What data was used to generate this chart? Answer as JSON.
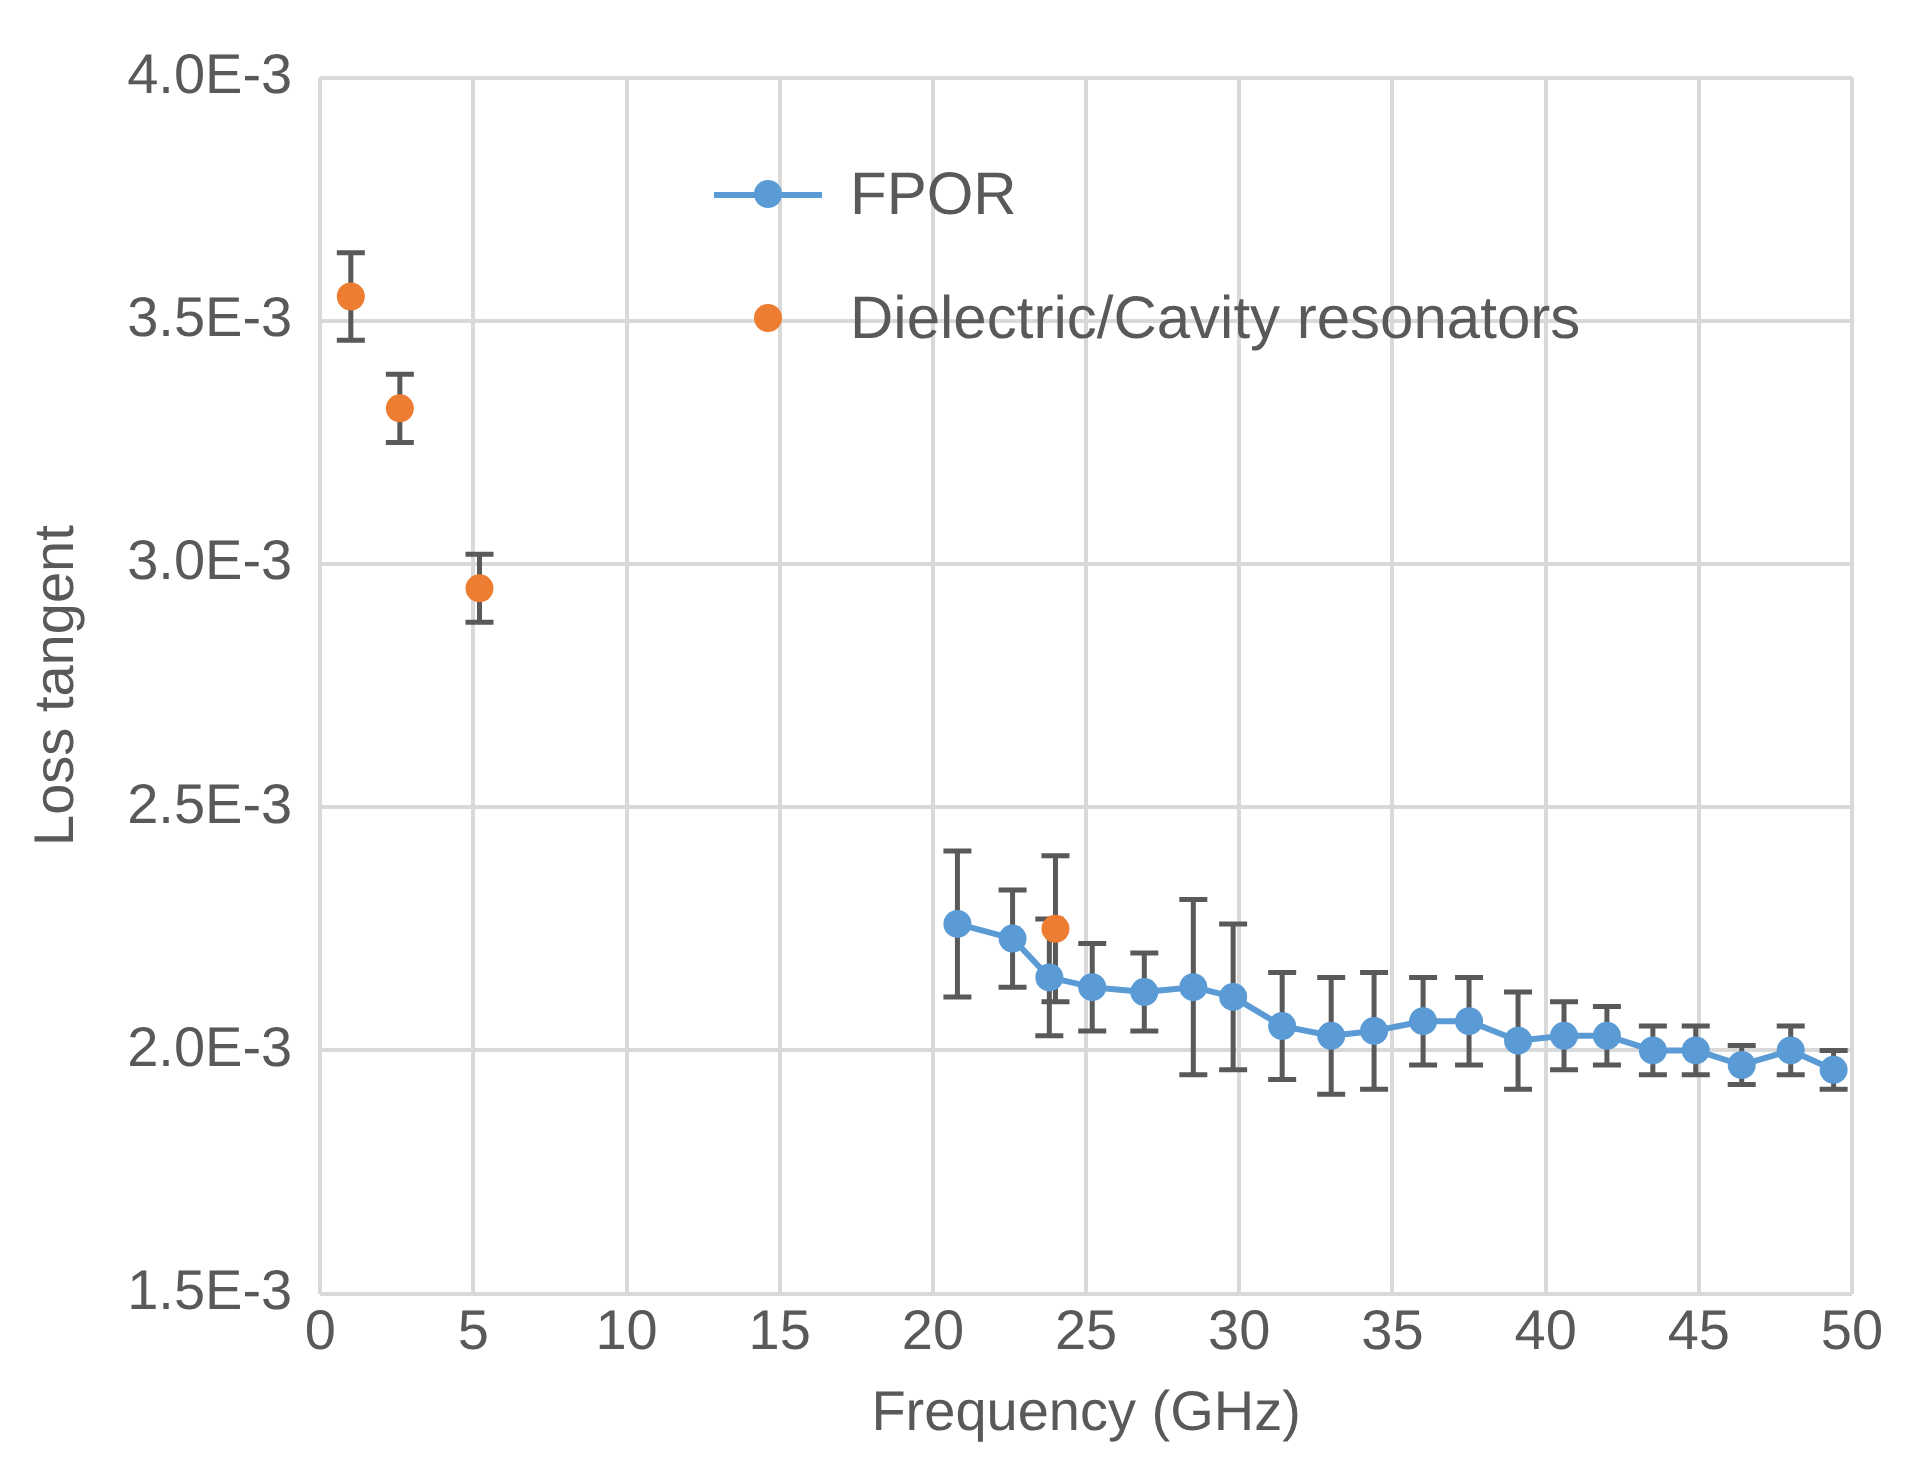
{
  "chart_data": {
    "type": "line",
    "xlabel": "Frequency (GHz)",
    "ylabel": "Loss tangent",
    "xlim": [
      0,
      50
    ],
    "xticks": [
      0,
      5,
      10,
      15,
      20,
      25,
      30,
      35,
      40,
      45,
      50
    ],
    "ylim": [
      0.0015,
      0.004
    ],
    "yticks": [
      {
        "value": 0.0015,
        "label": "1.5E-3"
      },
      {
        "value": 0.002,
        "label": "2.0E-3"
      },
      {
        "value": 0.0025,
        "label": "2.5E-3"
      },
      {
        "value": 0.003,
        "label": "3.0E-3"
      },
      {
        "value": 0.0035,
        "label": "3.5E-3"
      },
      {
        "value": 0.004,
        "label": "4.0E-3"
      }
    ],
    "grid": true,
    "legend": "top",
    "marker": "circle",
    "series": [
      {
        "name": "FPOR",
        "color": "#5b9bd5",
        "x": [
          20.8,
          22.6,
          23.8,
          25.2,
          26.9,
          28.5,
          29.8,
          31.4,
          33.0,
          34.4,
          36.0,
          37.5,
          39.1,
          40.6,
          42.0,
          43.5,
          44.9,
          46.4,
          48.0,
          49.4
        ],
        "values": [
          0.00226,
          0.00223,
          0.00215,
          0.00213,
          0.00212,
          0.00213,
          0.00211,
          0.00205,
          0.00203,
          0.00204,
          0.00206,
          0.00206,
          0.00202,
          0.00203,
          0.00203,
          0.002,
          0.002,
          0.00197,
          0.002,
          0.00196
        ],
        "errors": [
          0.00015,
          0.0001,
          0.00012,
          9e-05,
          8e-05,
          0.00018,
          0.00015,
          0.00011,
          0.00012,
          0.00012,
          9e-05,
          9e-05,
          0.0001,
          7e-05,
          6e-05,
          5e-05,
          5e-05,
          4e-05,
          5e-05,
          4e-05
        ]
      },
      {
        "name": "Dielectric/Cavity resonators",
        "type": "scatter",
        "color": "#ed7d31",
        "x": [
          1.0,
          2.6,
          5.2,
          24.0
        ],
        "values": [
          0.00355,
          0.00332,
          0.00295,
          0.00225
        ],
        "errors": [
          9e-05,
          7e-05,
          7e-05,
          0.00015
        ]
      }
    ]
  }
}
